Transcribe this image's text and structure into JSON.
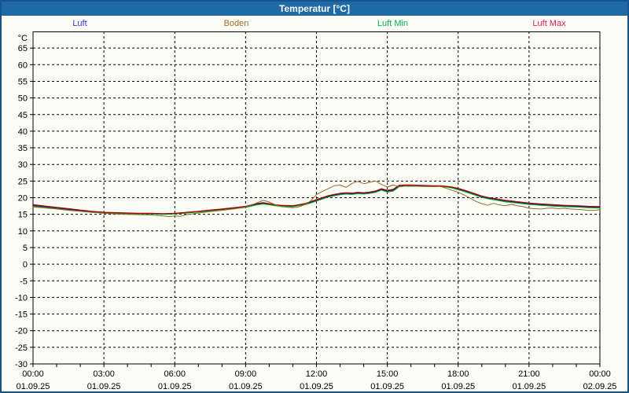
{
  "window": {
    "title": "Temperatur [°C]"
  },
  "legend": {
    "items": [
      {
        "label": "Luft",
        "color": "#3232d8"
      },
      {
        "label": "Boden",
        "color": "#a06a28"
      },
      {
        "label": "Luft Min",
        "color": "#00b050"
      },
      {
        "label": "Luft Max",
        "color": "#d62450"
      }
    ]
  },
  "colors": {
    "titlebar": "#1f6ba5",
    "window_border": "#17538c",
    "background": "#fcfcf6",
    "grid": "#000000"
  },
  "chart_data": {
    "type": "line",
    "title": "Temperatur [°C]",
    "ylabel": "°C",
    "ylim": [
      -30,
      70
    ],
    "y_tick_min": -30,
    "y_tick_max": 65,
    "y_tick_step": 5,
    "xlim_hours": [
      0,
      24
    ],
    "x_minor_tick_hours": 1,
    "x_major_grid_hours": 3,
    "grid": "dashed",
    "legend_position": "top",
    "x_ticks": [
      {
        "hour": 0,
        "time": "00:00",
        "date": "01.09.25"
      },
      {
        "hour": 3,
        "time": "03:00",
        "date": "01.09.25"
      },
      {
        "hour": 6,
        "time": "06:00",
        "date": "01.09.25"
      },
      {
        "hour": 9,
        "time": "09:00",
        "date": "01.09.25"
      },
      {
        "hour": 12,
        "time": "12:00",
        "date": "01.09.25"
      },
      {
        "hour": 15,
        "time": "15:00",
        "date": "01.09.25"
      },
      {
        "hour": 18,
        "time": "18:00",
        "date": "01.09.25"
      },
      {
        "hour": 21,
        "time": "21:00",
        "date": "01.09.25"
      },
      {
        "hour": 24,
        "time": "00:00",
        "date": "02.09.25"
      }
    ],
    "series": [
      {
        "name": "Luft",
        "color": "#0000b4",
        "width": 1.2,
        "points": [
          [
            0,
            17.6
          ],
          [
            0.5,
            17.3
          ],
          [
            1,
            16.9
          ],
          [
            1.5,
            16.5
          ],
          [
            2,
            16.1
          ],
          [
            2.5,
            15.8
          ],
          [
            3,
            15.5
          ],
          [
            3.5,
            15.4
          ],
          [
            4,
            15.3
          ],
          [
            4.5,
            15.2
          ],
          [
            5,
            15.2
          ],
          [
            5.5,
            15.1
          ],
          [
            6,
            15.2
          ],
          [
            6.5,
            15.5
          ],
          [
            7,
            15.8
          ],
          [
            7.5,
            16.2
          ],
          [
            8,
            16.5
          ],
          [
            8.5,
            16.9
          ],
          [
            9,
            17.3
          ],
          [
            9.5,
            18.1
          ],
          [
            9.75,
            18.3
          ],
          [
            10,
            18.1
          ],
          [
            10.25,
            17.8
          ],
          [
            10.5,
            17.6
          ],
          [
            11,
            17.5
          ],
          [
            11.5,
            18.1
          ],
          [
            11.75,
            18.6
          ],
          [
            12,
            19.2
          ],
          [
            12.25,
            19.8
          ],
          [
            12.5,
            20.4
          ],
          [
            12.75,
            20.8
          ],
          [
            13,
            21.1
          ],
          [
            13.25,
            21.3
          ],
          [
            13.5,
            21.2
          ],
          [
            13.75,
            21.4
          ],
          [
            14,
            21.3
          ],
          [
            14.25,
            21.5
          ],
          [
            14.5,
            21.8
          ],
          [
            14.75,
            22.5
          ],
          [
            15,
            22.0
          ],
          [
            15.25,
            22.3
          ],
          [
            15.5,
            23.5
          ],
          [
            15.75,
            23.7
          ],
          [
            16,
            23.6
          ],
          [
            16.5,
            23.6
          ],
          [
            17,
            23.5
          ],
          [
            17.25,
            23.5
          ],
          [
            17.5,
            23.3
          ],
          [
            17.75,
            23.0
          ],
          [
            18,
            22.6
          ],
          [
            18.25,
            22.1
          ],
          [
            18.5,
            21.5
          ],
          [
            18.75,
            20.9
          ],
          [
            19,
            20.3
          ],
          [
            19.25,
            19.9
          ],
          [
            19.5,
            19.6
          ],
          [
            20,
            19.0
          ],
          [
            20.5,
            18.6
          ],
          [
            21,
            18.2
          ],
          [
            21.5,
            17.9
          ],
          [
            22,
            17.7
          ],
          [
            22.5,
            17.5
          ],
          [
            23,
            17.4
          ],
          [
            23.5,
            17.2
          ],
          [
            24,
            17.1
          ]
        ]
      },
      {
        "name": "Luft Min",
        "color": "#00a020",
        "width": 1.2,
        "points": [
          [
            0,
            17.4
          ],
          [
            0.5,
            17.1
          ],
          [
            1,
            16.7
          ],
          [
            1.5,
            16.3
          ],
          [
            2,
            15.9
          ],
          [
            2.5,
            15.6
          ],
          [
            3,
            15.4
          ],
          [
            3.5,
            15.3
          ],
          [
            4,
            15.2
          ],
          [
            4.5,
            15.1
          ],
          [
            5,
            15.1
          ],
          [
            5.5,
            15.0
          ],
          [
            6,
            15.1
          ],
          [
            6.5,
            15.4
          ],
          [
            7,
            15.7
          ],
          [
            7.5,
            16.0
          ],
          [
            8,
            16.3
          ],
          [
            8.5,
            16.7
          ],
          [
            9,
            17.1
          ],
          [
            9.5,
            17.9
          ],
          [
            9.75,
            18.1
          ],
          [
            10,
            17.9
          ],
          [
            10.25,
            17.6
          ],
          [
            10.5,
            17.4
          ],
          [
            11,
            17.3
          ],
          [
            11.5,
            17.9
          ],
          [
            11.75,
            18.4
          ],
          [
            12,
            19.0
          ],
          [
            12.25,
            19.6
          ],
          [
            12.5,
            20.2
          ],
          [
            12.75,
            20.6
          ],
          [
            13,
            20.9
          ],
          [
            13.25,
            21.1
          ],
          [
            13.5,
            21.0
          ],
          [
            13.75,
            21.2
          ],
          [
            14,
            21.1
          ],
          [
            14.25,
            21.3
          ],
          [
            14.5,
            21.6
          ],
          [
            14.75,
            22.3
          ],
          [
            15,
            21.7
          ],
          [
            15.25,
            22.0
          ],
          [
            15.5,
            23.3
          ],
          [
            15.75,
            23.5
          ],
          [
            16,
            23.5
          ],
          [
            16.5,
            23.4
          ],
          [
            17,
            23.4
          ],
          [
            17.25,
            23.4
          ],
          [
            17.5,
            23.2
          ],
          [
            17.75,
            22.9
          ],
          [
            18,
            22.4
          ],
          [
            18.25,
            21.9
          ],
          [
            18.5,
            21.3
          ],
          [
            18.75,
            20.7
          ],
          [
            19,
            20.1
          ],
          [
            19.25,
            19.7
          ],
          [
            19.5,
            19.4
          ],
          [
            20,
            18.8
          ],
          [
            20.5,
            18.4
          ],
          [
            21,
            18.0
          ],
          [
            21.5,
            17.7
          ],
          [
            22,
            17.5
          ],
          [
            22.5,
            17.3
          ],
          [
            23,
            17.2
          ],
          [
            23.5,
            17.0
          ],
          [
            24,
            16.9
          ]
        ]
      },
      {
        "name": "Luft Max",
        "color": "#b40000",
        "width": 1.2,
        "points": [
          [
            0,
            17.9
          ],
          [
            0.5,
            17.5
          ],
          [
            1,
            17.1
          ],
          [
            1.5,
            16.7
          ],
          [
            2,
            16.3
          ],
          [
            2.5,
            15.9
          ],
          [
            3,
            15.6
          ],
          [
            3.5,
            15.5
          ],
          [
            4,
            15.4
          ],
          [
            4.5,
            15.3
          ],
          [
            5,
            15.3
          ],
          [
            5.5,
            15.2
          ],
          [
            6,
            15.3
          ],
          [
            6.5,
            15.6
          ],
          [
            7,
            15.9
          ],
          [
            7.5,
            16.3
          ],
          [
            8,
            16.6
          ],
          [
            8.5,
            17.0
          ],
          [
            9,
            17.4
          ],
          [
            9.5,
            18.3
          ],
          [
            9.75,
            18.5
          ],
          [
            10,
            18.2
          ],
          [
            10.25,
            17.9
          ],
          [
            10.5,
            17.7
          ],
          [
            11,
            17.6
          ],
          [
            11.5,
            18.2
          ],
          [
            11.75,
            18.8
          ],
          [
            12,
            19.4
          ],
          [
            12.25,
            20.0
          ],
          [
            12.5,
            20.6
          ],
          [
            12.75,
            21.0
          ],
          [
            13,
            21.3
          ],
          [
            13.25,
            21.5
          ],
          [
            13.5,
            21.4
          ],
          [
            13.75,
            21.6
          ],
          [
            14,
            21.5
          ],
          [
            14.25,
            21.7
          ],
          [
            14.5,
            22.0
          ],
          [
            14.75,
            22.7
          ],
          [
            15,
            22.2
          ],
          [
            15.25,
            22.5
          ],
          [
            15.5,
            23.7
          ],
          [
            15.75,
            23.8
          ],
          [
            16,
            23.8
          ],
          [
            16.5,
            23.7
          ],
          [
            17,
            23.6
          ],
          [
            17.25,
            23.6
          ],
          [
            17.5,
            23.4
          ],
          [
            17.75,
            23.2
          ],
          [
            18,
            22.8
          ],
          [
            18.25,
            22.3
          ],
          [
            18.5,
            21.7
          ],
          [
            18.75,
            21.1
          ],
          [
            19,
            20.5
          ],
          [
            19.25,
            20.1
          ],
          [
            19.5,
            19.8
          ],
          [
            20,
            19.2
          ],
          [
            20.5,
            18.8
          ],
          [
            21,
            18.4
          ],
          [
            21.5,
            18.1
          ],
          [
            22,
            17.9
          ],
          [
            22.5,
            17.7
          ],
          [
            23,
            17.6
          ],
          [
            23.5,
            17.4
          ],
          [
            24,
            17.3
          ]
        ]
      },
      {
        "name": "Boden",
        "color": "#8c6e28",
        "width": 1.0,
        "points": [
          [
            0,
            17.2
          ],
          [
            0.5,
            16.9
          ],
          [
            1,
            16.6
          ],
          [
            1.5,
            16.2
          ],
          [
            2,
            15.9
          ],
          [
            2.5,
            15.6
          ],
          [
            3,
            15.3
          ],
          [
            3.5,
            15.1
          ],
          [
            4,
            15.0
          ],
          [
            4.5,
            14.9
          ],
          [
            5,
            14.8
          ],
          [
            5.5,
            14.5
          ],
          [
            5.75,
            14.3
          ],
          [
            6,
            14.5
          ],
          [
            6.25,
            14.4
          ],
          [
            6.5,
            14.9
          ],
          [
            7,
            15.4
          ],
          [
            7.5,
            15.8
          ],
          [
            8,
            16.2
          ],
          [
            8.5,
            16.6
          ],
          [
            9,
            17.2
          ],
          [
            9.5,
            18.5
          ],
          [
            9.75,
            19.2
          ],
          [
            10,
            18.7
          ],
          [
            10.25,
            17.9
          ],
          [
            10.5,
            17.3
          ],
          [
            11,
            17.0
          ],
          [
            11.25,
            17.2
          ],
          [
            11.5,
            17.9
          ],
          [
            11.75,
            19.0
          ],
          [
            12,
            20.9
          ],
          [
            12.25,
            21.9
          ],
          [
            12.5,
            22.7
          ],
          [
            12.75,
            23.6
          ],
          [
            13,
            23.8
          ],
          [
            13.25,
            23.1
          ],
          [
            13.5,
            24.3
          ],
          [
            13.75,
            24.9
          ],
          [
            14,
            24.2
          ],
          [
            14.25,
            24.6
          ],
          [
            14.5,
            25.0
          ],
          [
            14.75,
            24.0
          ],
          [
            15,
            23.2
          ],
          [
            15.25,
            23.8
          ],
          [
            15.5,
            23.3
          ],
          [
            15.75,
            23.5
          ],
          [
            16,
            23.4
          ],
          [
            16.25,
            23.5
          ],
          [
            16.5,
            23.4
          ],
          [
            17,
            23.3
          ],
          [
            17.25,
            23.4
          ],
          [
            17.5,
            22.8
          ],
          [
            18,
            21.6
          ],
          [
            18.25,
            20.8
          ],
          [
            18.5,
            19.9
          ],
          [
            18.75,
            18.9
          ],
          [
            19,
            18.2
          ],
          [
            19.25,
            17.7
          ],
          [
            19.5,
            18.3
          ],
          [
            19.75,
            17.8
          ],
          [
            20,
            17.6
          ],
          [
            20.25,
            18.0
          ],
          [
            20.5,
            17.6
          ],
          [
            20.75,
            17.3
          ],
          [
            21,
            16.8
          ],
          [
            21.25,
            16.7
          ],
          [
            21.5,
            16.6
          ],
          [
            21.75,
            16.8
          ],
          [
            22,
            16.9
          ],
          [
            22.25,
            16.7
          ],
          [
            22.5,
            16.8
          ],
          [
            22.75,
            16.6
          ],
          [
            23,
            16.5
          ],
          [
            23.25,
            16.4
          ],
          [
            23.5,
            16.2
          ],
          [
            23.75,
            16.2
          ],
          [
            24,
            16.4
          ]
        ]
      }
    ]
  }
}
